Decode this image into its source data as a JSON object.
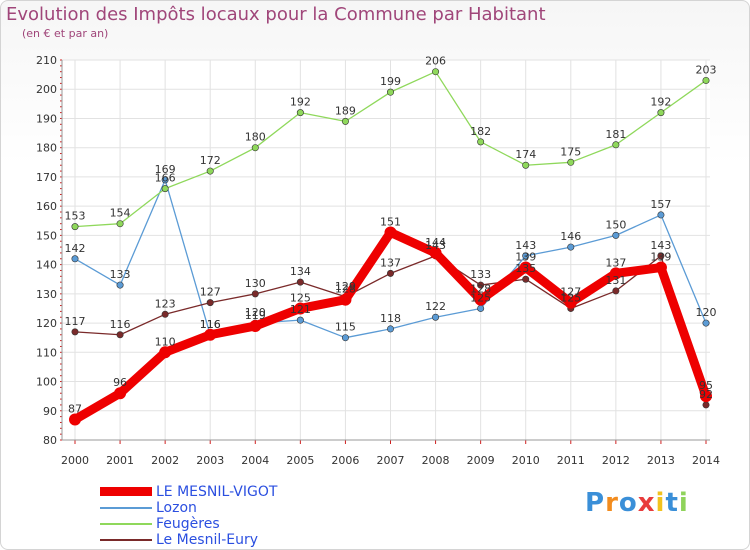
{
  "title": "Evolution des Impôts locaux pour la Commune par Habitant",
  "subtitle": "(en € et par an)",
  "logo": "Proxiti",
  "chart_data": {
    "type": "line",
    "title": "Evolution des Impôts locaux pour la Commune par Habitant",
    "ylabel": "(en € et par an)",
    "xlabel": "",
    "x": [
      "2000",
      "2001",
      "2002",
      "2003",
      "2004",
      "2005",
      "2006",
      "2007",
      "2008",
      "2009",
      "2010",
      "2011",
      "2012",
      "2013",
      "2014"
    ],
    "ylim": [
      80,
      210
    ],
    "yticks": [
      80,
      90,
      100,
      110,
      120,
      130,
      140,
      150,
      160,
      170,
      180,
      190,
      200,
      210
    ],
    "grid": true,
    "legend_position": "bottom-left",
    "series": [
      {
        "name": "LE MESNIL-VIGOT",
        "color": "#ee0000",
        "emphasis": true,
        "values": [
          87,
          96,
          110,
          116,
          119,
          125,
          128,
          151,
          144,
          128,
          139,
          127,
          137,
          139,
          95
        ]
      },
      {
        "name": "Lozon",
        "color": "#5b9bd5",
        "values": [
          142,
          133,
          169,
          116,
          120,
          121,
          115,
          118,
          122,
          125,
          143,
          146,
          150,
          157,
          120
        ]
      },
      {
        "name": "Feugères",
        "color": "#8fd85b",
        "values": [
          153,
          154,
          166,
          172,
          180,
          192,
          189,
          199,
          206,
          182,
          174,
          175,
          181,
          192,
          203
        ]
      },
      {
        "name": "Le Mesnil-Eury",
        "color": "#7a2a2a",
        "values": [
          117,
          116,
          123,
          127,
          130,
          134,
          129,
          137,
          143,
          133,
          135,
          125,
          131,
          143,
          92
        ]
      }
    ]
  }
}
